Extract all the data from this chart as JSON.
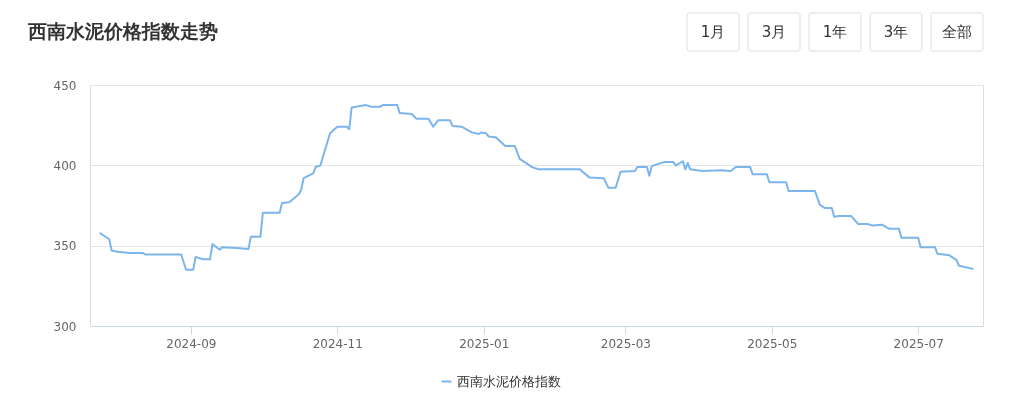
{
  "chart_data": {
    "type": "line",
    "title": "西南水泥价格指数走势",
    "annotations": [
      "1月",
      "3月",
      "1年",
      "3年",
      "全部"
    ],
    "x": [
      "2024-07-25",
      "2024-07-27",
      "2024-07-29",
      "2024-07-30",
      "2024-08-02",
      "2024-08-07",
      "2024-08-12",
      "2024-08-13",
      "2024-08-28",
      "2024-08-30",
      "2024-09-02",
      "2024-09-03",
      "2024-09-06",
      "2024-09-09",
      "2024-09-10",
      "2024-09-13",
      "2024-09-14",
      "2024-09-20",
      "2024-09-25",
      "2024-09-26",
      "2024-09-30",
      "2024-10-01",
      "2024-10-08",
      "2024-10-09",
      "2024-10-12",
      "2024-10-16",
      "2024-10-17",
      "2024-10-18",
      "2024-10-22",
      "2024-10-23",
      "2024-10-25",
      "2024-10-29",
      "2024-11-01",
      "2024-11-05",
      "2024-11-06",
      "2024-11-07",
      "2024-11-13",
      "2024-11-15",
      "2024-11-19",
      "2024-11-20",
      "2024-11-26",
      "2024-11-27",
      "2024-12-02",
      "2024-12-04",
      "2024-12-09",
      "2024-12-11",
      "2024-12-13",
      "2024-12-18",
      "2024-12-19",
      "2024-12-23",
      "2024-12-27",
      "2024-12-30",
      "2024-12-31",
      "2025-01-02",
      "2025-01-03",
      "2025-01-06",
      "2025-01-10",
      "2025-01-14",
      "2025-01-16",
      "2025-01-21",
      "2025-01-24",
      "2025-02-10",
      "2025-02-14",
      "2025-02-20",
      "2025-02-22",
      "2025-02-25",
      "2025-02-27",
      "2025-03-05",
      "2025-03-06",
      "2025-03-10",
      "2025-03-11",
      "2025-03-12",
      "2025-03-17",
      "2025-03-21",
      "2025-03-22",
      "2025-03-25",
      "2025-03-26",
      "2025-03-27",
      "2025-03-28",
      "2025-04-02",
      "2025-04-10",
      "2025-04-14",
      "2025-04-16",
      "2025-04-22",
      "2025-04-23",
      "2025-04-29",
      "2025-04-30",
      "2025-05-07",
      "2025-05-08",
      "2025-05-19",
      "2025-05-21",
      "2025-05-23",
      "2025-05-26",
      "2025-05-27",
      "2025-05-29",
      "2025-06-03",
      "2025-06-06",
      "2025-06-10",
      "2025-06-12",
      "2025-06-16",
      "2025-06-19",
      "2025-06-23",
      "2025-06-24",
      "2025-07-01",
      "2025-07-02",
      "2025-07-08",
      "2025-07-09",
      "2025-07-14",
      "2025-07-17",
      "2025-07-18",
      "2025-07-21",
      "2025-07-24"
    ],
    "series": [
      {
        "name": "西南水泥价格指数",
        "color": "#7cb5ec",
        "values": [
          358,
          356,
          354,
          347,
          346,
          345.5,
          345.5,
          344.5,
          344.5,
          335,
          335,
          343,
          341.5,
          341.5,
          351,
          347.5,
          349,
          348.5,
          348,
          355.5,
          355.5,
          370.5,
          370.5,
          376.5,
          377,
          382,
          385,
          392,
          395,
          399,
          400,
          420,
          424,
          424,
          422.5,
          436,
          437.5,
          436.5,
          436.5,
          437.5,
          437.5,
          432.5,
          432,
          429,
          429,
          424,
          428,
          428,
          424.5,
          424,
          420.5,
          419.5,
          420.5,
          420,
          418,
          417.5,
          412,
          412,
          404,
          399,
          397.5,
          397.5,
          392.5,
          392,
          386,
          386,
          396,
          396.5,
          399,
          399,
          393.5,
          399.5,
          402,
          402,
          400,
          402.5,
          397.5,
          401.5,
          397.5,
          396.5,
          397,
          396.5,
          399,
          399,
          394.5,
          394.5,
          389.5,
          389.5,
          384,
          384,
          375.5,
          373.5,
          373.5,
          368,
          368.5,
          368.5,
          363.5,
          363.5,
          362.5,
          363,
          360.5,
          360.5,
          355,
          355,
          349,
          349,
          345,
          344,
          341,
          337.5,
          336.5,
          335.5
        ]
      }
    ],
    "xlim": [
      "2024-07-21",
      "2025-07-28"
    ],
    "xticks": [
      {
        "value": "2024-09-01",
        "label": "2024-09"
      },
      {
        "value": "2024-11-01",
        "label": "2024-11"
      },
      {
        "value": "2025-01-01",
        "label": "2025-01"
      },
      {
        "value": "2025-03-01",
        "label": "2025-03"
      },
      {
        "value": "2025-05-01",
        "label": "2025-05"
      },
      {
        "value": "2025-07-01",
        "label": "2025-07"
      }
    ],
    "ylim": [
      300,
      450
    ],
    "yticks": [
      300,
      350,
      400,
      450
    ],
    "grid": "y",
    "legend": "bottom",
    "marker": "none",
    "line_style": "solid"
  }
}
